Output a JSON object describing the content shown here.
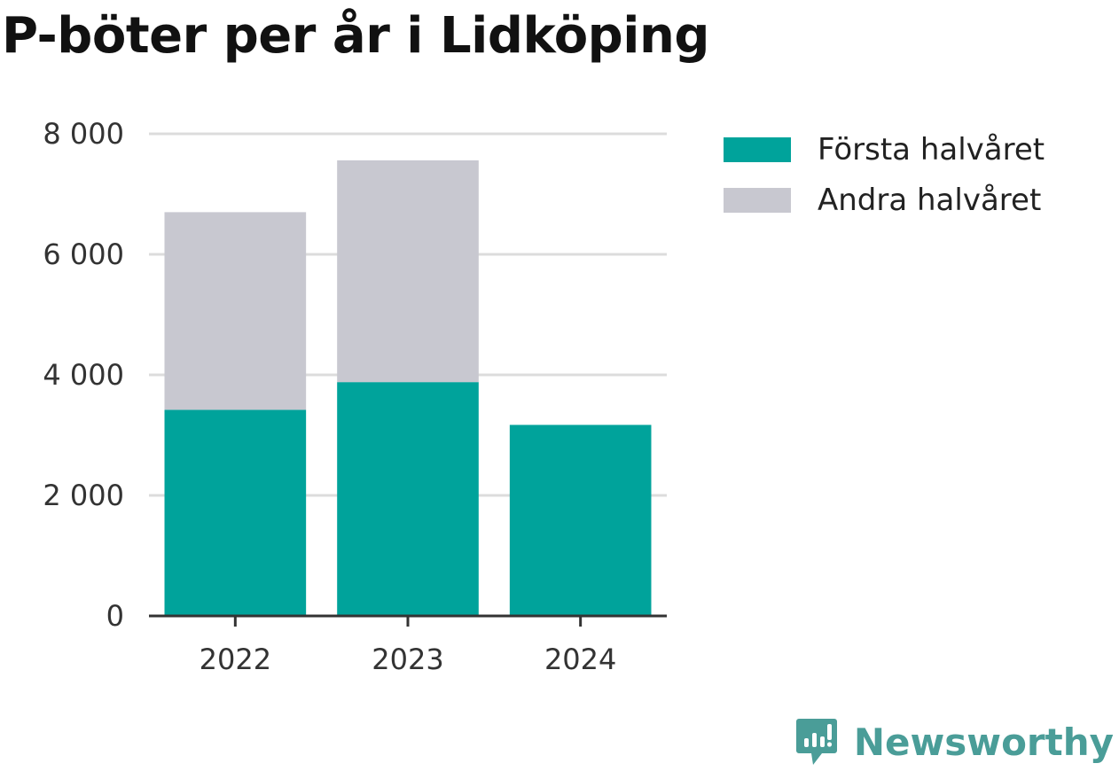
{
  "title": "P-böter per år i Lidköping",
  "chart_data": {
    "type": "bar",
    "stacked": true,
    "title": "P-böter per år i Lidköping",
    "xlabel": "",
    "ylabel": "",
    "categories": [
      "2022",
      "2023",
      "2024"
    ],
    "series": [
      {
        "name": "Första halvåret",
        "color": "#00a39b",
        "values": [
          3420,
          3880,
          3170
        ]
      },
      {
        "name": "Andra halvåret",
        "color": "#c8c8d0",
        "values": [
          3280,
          3680,
          0
        ]
      }
    ],
    "ylim": [
      0,
      8000
    ],
    "yticks": [
      0,
      2000,
      4000,
      6000,
      8000
    ],
    "ytick_labels": [
      "0",
      "2 000",
      "4 000",
      "6 000",
      "8 000"
    ],
    "grid": true,
    "legend_position": "right"
  },
  "legend": {
    "items": [
      {
        "label": "Första halvåret",
        "color": "#00a39b"
      },
      {
        "label": "Andra halvåret",
        "color": "#c8c8d0"
      }
    ]
  },
  "brand": {
    "name": "Newsworthy",
    "icon": "newsworthy-logo-icon",
    "color": "#4a9d98"
  }
}
